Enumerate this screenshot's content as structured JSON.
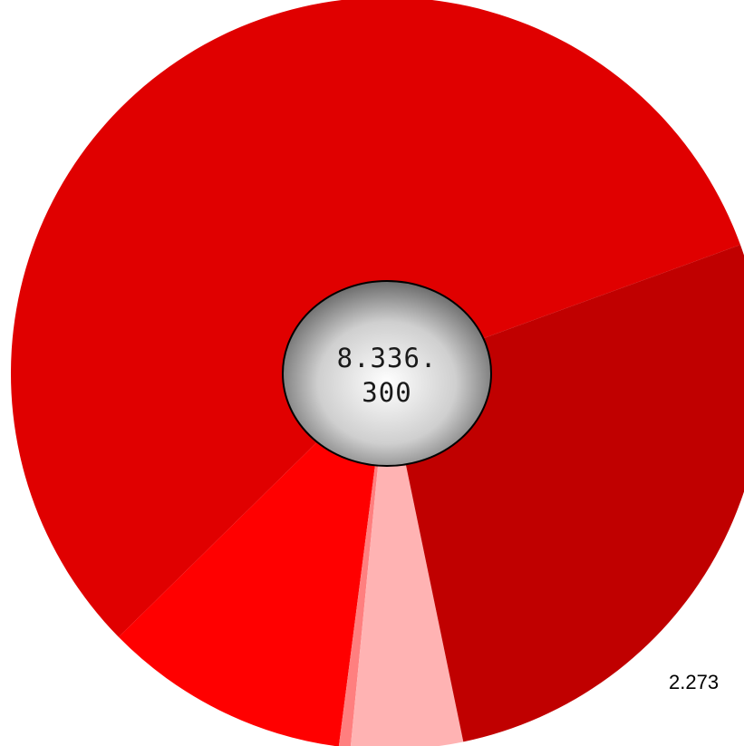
{
  "chart_data": {
    "type": "pie",
    "total_line1": "8.336.",
    "total_line2": "300",
    "slices": [
      {
        "name": "",
        "value": 56.8,
        "color": "#e00000"
      },
      {
        "name": "",
        "value": 10.6,
        "color": "#ff0000"
      },
      {
        "name": "",
        "value": 0.5,
        "color": "#ff7f7f"
      },
      {
        "name": "",
        "value": 4.8,
        "color": "#ffb3b3"
      },
      {
        "name": "",
        "value": 27.3,
        "color": "#c00000",
        "label": "2.273"
      }
    ]
  }
}
